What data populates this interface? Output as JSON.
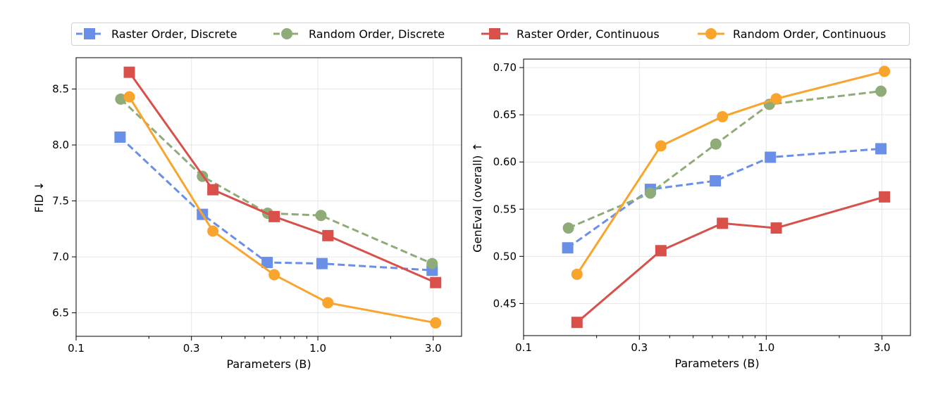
{
  "legend": {
    "placement": "top-center",
    "entries": [
      {
        "label": "Raster Order, Discrete",
        "color": "#6a8fe8",
        "marker": "square",
        "dash": true
      },
      {
        "label": "Random Order, Discrete",
        "color": "#8fac78",
        "marker": "circle",
        "dash": true
      },
      {
        "label": "Raster Order, Continuous",
        "color": "#d9504b",
        "marker": "square",
        "dash": false
      },
      {
        "label": "Random Order, Continuous",
        "color": "#f9a42c",
        "marker": "circle",
        "dash": false
      }
    ]
  },
  "chart_data": [
    {
      "type": "line",
      "xlabel": "Parameters (B)",
      "ylabel": "FID ↓",
      "xscale": "log",
      "xlim": [
        0.1,
        3.93
      ],
      "ylim": [
        6.29,
        8.78
      ],
      "xticks": [
        0.1,
        0.3,
        1.0,
        3.0
      ],
      "xtick_labels": [
        "0.1",
        "0.3",
        "1.0",
        "3.0"
      ],
      "yticks": [
        6.5,
        7.0,
        7.5,
        8.0,
        8.5
      ],
      "ytick_labels": [
        "6.5",
        "7.0",
        "7.5",
        "8.0",
        "8.5"
      ],
      "grid": true,
      "series": [
        {
          "name": "Raster Order, Discrete",
          "x": [
            0.152,
            0.333,
            0.617,
            1.04,
            2.97
          ],
          "y": [
            8.07,
            7.38,
            6.95,
            6.94,
            6.88
          ]
        },
        {
          "name": "Random Order, Discrete",
          "x": [
            0.153,
            0.333,
            0.62,
            1.03,
            2.97
          ],
          "y": [
            8.41,
            7.72,
            7.39,
            7.37,
            6.94
          ]
        },
        {
          "name": "Raster Order, Continuous",
          "x": [
            0.166,
            0.368,
            0.66,
            1.1,
            3.07
          ],
          "y": [
            8.65,
            7.6,
            7.36,
            7.19,
            6.77
          ]
        },
        {
          "name": "Random Order, Continuous",
          "x": [
            0.166,
            0.368,
            0.66,
            1.1,
            3.07
          ],
          "y": [
            8.43,
            7.23,
            6.84,
            6.59,
            6.41
          ]
        }
      ]
    },
    {
      "type": "line",
      "xlabel": "Parameters (B)",
      "ylabel": "GenEval (overall) ↑",
      "xscale": "log",
      "xlim": [
        0.1,
        3.93
      ],
      "ylim": [
        0.416,
        0.709
      ],
      "xticks": [
        0.1,
        0.3,
        1.0,
        3.0
      ],
      "xtick_labels": [
        "0.1",
        "0.3",
        "1.0",
        "3.0"
      ],
      "yticks": [
        0.45,
        0.5,
        0.55,
        0.6,
        0.65,
        0.7
      ],
      "ytick_labels": [
        "0.45",
        "0.50",
        "0.55",
        "0.60",
        "0.65",
        "0.70"
      ],
      "grid": true,
      "series": [
        {
          "name": "Raster Order, Discrete",
          "x": [
            0.152,
            0.333,
            0.617,
            1.04,
            2.97
          ],
          "y": [
            0.509,
            0.571,
            0.58,
            0.605,
            0.614
          ]
        },
        {
          "name": "Random Order, Discrete",
          "x": [
            0.153,
            0.333,
            0.62,
            1.03,
            2.97
          ],
          "y": [
            0.53,
            0.567,
            0.619,
            0.661,
            0.675
          ]
        },
        {
          "name": "Raster Order, Continuous",
          "x": [
            0.166,
            0.368,
            0.66,
            1.1,
            3.07
          ],
          "y": [
            0.43,
            0.506,
            0.535,
            0.53,
            0.563
          ]
        },
        {
          "name": "Random Order, Continuous",
          "x": [
            0.166,
            0.368,
            0.66,
            1.1,
            3.07
          ],
          "y": [
            0.481,
            0.617,
            0.648,
            0.667,
            0.696
          ]
        }
      ]
    }
  ]
}
